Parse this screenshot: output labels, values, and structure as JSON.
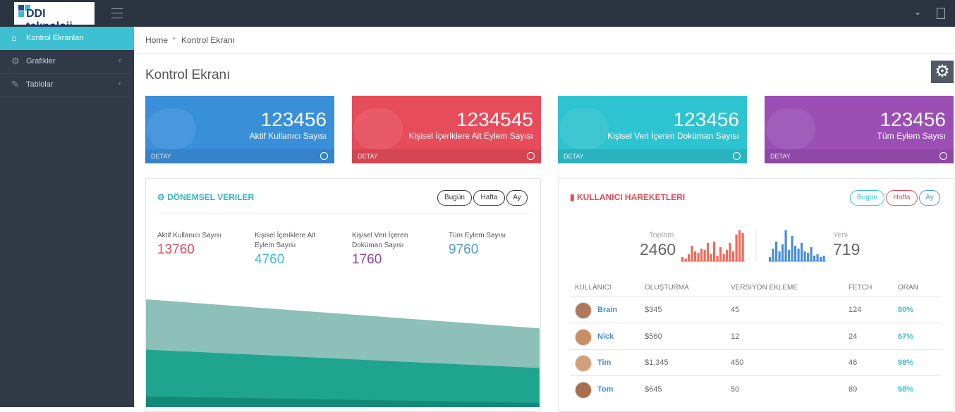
{
  "header": {
    "logo": "DDI teknoloji"
  },
  "sidebar": {
    "items": [
      "Kontrol Ekranları",
      "Grafikler",
      "Tablolar"
    ]
  },
  "breadcrumb": [
    "Home",
    "Kontrol Ekranı"
  ],
  "page_title": "Kontrol Ekranı",
  "stat_cards": [
    {
      "value": 123456,
      "label": "Aktif Kullanıcı Sayısı",
      "footer": "DETAY",
      "color": "#3a8fd9"
    },
    {
      "value": 1234545,
      "label": "Kişisel İçeriklere Ait Eylem Sayısı",
      "footer": "DETAY",
      "color": "#e74c5b"
    },
    {
      "value": 123456,
      "label": "Kişisel Veri İçeren Doküman Sayısı",
      "footer": "DETAY",
      "color": "#2ec3d0"
    },
    {
      "value": 123456,
      "label": "Tüm Eylem Sayısı",
      "footer": "DETAY",
      "color": "#9b4fb5"
    }
  ],
  "periodic": {
    "title": "DÖNEMSEL VERILER",
    "filters": [
      "Bugün",
      "Hafta",
      "Ay"
    ],
    "stats": [
      {
        "label": "Aktif Kullanıcı Sayısı",
        "value": 13760,
        "color": "#e04b59"
      },
      {
        "label": "Kişisel İçeriklere Ait Eylem Sayısı",
        "value": 4760,
        "color": "#3cbfd0"
      },
      {
        "label": "Kişisel Veri İçeren Doküman Sayısı",
        "value": 1760,
        "color": "#8e44ad"
      },
      {
        "label": "Tüm Eylem Sayısı",
        "value": 9760,
        "color": "#4a9bdc"
      }
    ],
    "area": {
      "series": [
        {
          "color": "#8cc0b8",
          "values": [
            152,
            111
          ]
        },
        {
          "color": "#1fa58f",
          "values": [
            81,
            55
          ]
        },
        {
          "color": "#148a76",
          "values": [
            15,
            6
          ]
        }
      ]
    }
  },
  "activity": {
    "title": "KULLANICI HAREKETLERI",
    "filters": [
      "Bugün",
      "Hafta",
      "Ay"
    ],
    "summary": [
      {
        "label": "Toplam",
        "value": 2460,
        "color": "#ef6a5a",
        "bars": [
          6,
          4,
          10,
          22,
          14,
          12,
          18,
          16,
          26,
          10,
          28,
          8,
          20,
          10,
          16,
          26,
          14,
          38,
          44,
          40
        ]
      },
      {
        "label": "Yeni",
        "value": 719,
        "color": "#4a8fd6",
        "bars": [
          6,
          18,
          28,
          14,
          24,
          44,
          16,
          36,
          22,
          18,
          26,
          14,
          12,
          20,
          8,
          10,
          6,
          8
        ]
      }
    ],
    "table": {
      "columns": [
        "KULLANICI",
        "OLUŞTURMA",
        "VERSIYON EKLEME",
        "FETCH",
        "ORAN"
      ],
      "rows": [
        [
          "Brain",
          "$345",
          "45",
          "124",
          "80%"
        ],
        [
          "Nick",
          "$560",
          "12",
          "24",
          "67%"
        ],
        [
          "Tim",
          "$1,345",
          "450",
          "46",
          "98%"
        ],
        [
          "Tom",
          "$645",
          "50",
          "89",
          "58%"
        ]
      ]
    }
  }
}
